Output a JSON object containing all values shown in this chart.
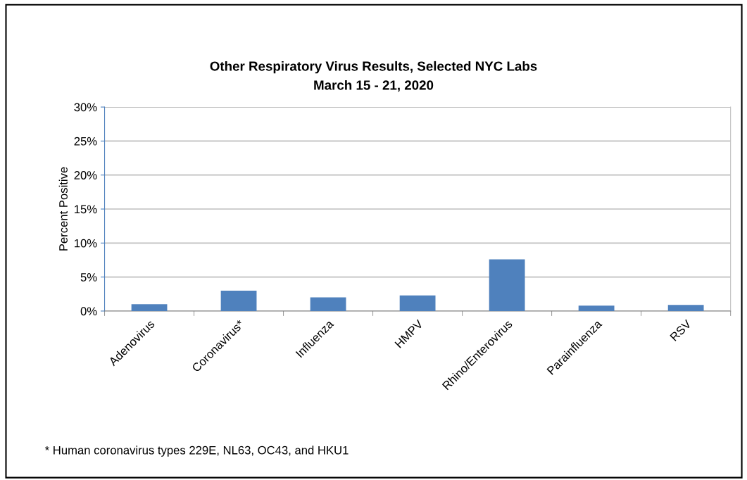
{
  "chart_data": {
    "type": "bar",
    "title": "Other Respiratory Virus Results, Selected NYC Labs\nMarch 15 - 21, 2020",
    "ylabel": "Percent Positive",
    "categories": [
      "Adenovirus",
      "Coronavirus*",
      "Influenza",
      "HMPV",
      "Rhino/Enterovirus",
      "Parainfluenza",
      "RSV"
    ],
    "values": [
      1.0,
      3.0,
      2.0,
      2.3,
      7.6,
      0.8,
      0.9
    ],
    "color": "#4f81bd",
    "ylim": [
      0,
      30
    ],
    "yticks": [
      {
        "value": 0,
        "label": "0%"
      },
      {
        "value": 5,
        "label": "5%"
      },
      {
        "value": 10,
        "label": "10%"
      },
      {
        "value": 15,
        "label": "15%"
      },
      {
        "value": 20,
        "label": "20%"
      },
      {
        "value": 25,
        "label": "25%"
      },
      {
        "value": 30,
        "label": "30%"
      }
    ],
    "grid": "y",
    "annotations": [
      "* Human coronavirus types 229E, NL63, OC43, and HKU1"
    ]
  }
}
